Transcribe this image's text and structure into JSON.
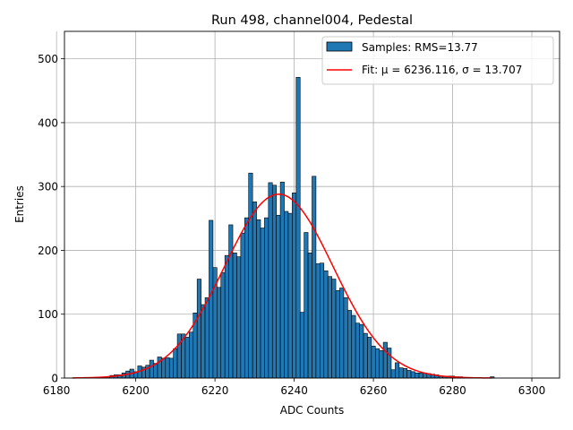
{
  "chart_data": {
    "type": "bar",
    "title": "Run 498, channel004, Pedestal",
    "xlabel": "ADC Counts",
    "ylabel": "Entries",
    "xlim": [
      6182,
      6307
    ],
    "ylim": [
      0,
      543
    ],
    "xticks": [
      6180,
      6200,
      6220,
      6240,
      6260,
      6280,
      6300
    ],
    "yticks": [
      0,
      100,
      200,
      300,
      400,
      500
    ],
    "grid": true,
    "legend_position": "top-right",
    "colors": {
      "bars": "#1f77b4",
      "bar_edge": "#000000",
      "fit": "#ff0000",
      "grid": "#b0b0b0"
    },
    "series": [
      {
        "name": "Samples: RMS=13.77",
        "kind": "histogram",
        "bin_width": 1,
        "x": [
          6190,
          6191,
          6192,
          6193,
          6194,
          6195,
          6196,
          6197,
          6198,
          6199,
          6200,
          6201,
          6202,
          6203,
          6204,
          6205,
          6206,
          6207,
          6208,
          6209,
          6210,
          6211,
          6212,
          6213,
          6214,
          6215,
          6216,
          6217,
          6218,
          6219,
          6220,
          6221,
          6222,
          6223,
          6224,
          6225,
          6226,
          6227,
          6228,
          6229,
          6230,
          6231,
          6232,
          6233,
          6234,
          6235,
          6236,
          6237,
          6238,
          6239,
          6240,
          6241,
          6242,
          6243,
          6244,
          6245,
          6246,
          6247,
          6248,
          6249,
          6250,
          6251,
          6252,
          6253,
          6254,
          6255,
          6256,
          6257,
          6258,
          6259,
          6260,
          6261,
          6262,
          6263,
          6264,
          6265,
          6266,
          6267,
          6268,
          6269,
          6270,
          6271,
          6272,
          6273,
          6274,
          6275,
          6276,
          6277,
          6278,
          6279,
          6280,
          6281,
          6282,
          6283,
          6284,
          6285,
          6286,
          6287,
          6288,
          6289,
          6290
        ],
        "values": [
          1,
          1,
          1,
          2,
          4,
          5,
          5,
          8,
          11,
          14,
          10,
          19,
          17,
          20,
          28,
          23,
          33,
          31,
          32,
          31,
          46,
          69,
          69,
          64,
          72,
          102,
          155,
          115,
          126,
          247,
          173,
          142,
          165,
          192,
          240,
          196,
          190,
          227,
          251,
          321,
          276,
          248,
          235,
          251,
          306,
          302,
          255,
          307,
          261,
          258,
          290,
          471,
          103,
          228,
          196,
          316,
          179,
          180,
          168,
          159,
          155,
          137,
          141,
          126,
          106,
          98,
          86,
          84,
          70,
          64,
          50,
          46,
          43,
          56,
          47,
          13,
          24,
          16,
          15,
          12,
          10,
          8,
          8,
          8,
          7,
          6,
          5,
          3,
          3,
          3,
          3,
          2,
          2,
          1,
          1,
          1,
          0,
          0,
          0,
          0,
          2
        ]
      },
      {
        "name": "Fit: μ = 6236.116, σ = 13.707",
        "kind": "gaussian_fit",
        "mu": 6236.116,
        "sigma": 13.707,
        "amplitude": 288,
        "x_range": [
          6184,
          6290
        ]
      }
    ]
  }
}
